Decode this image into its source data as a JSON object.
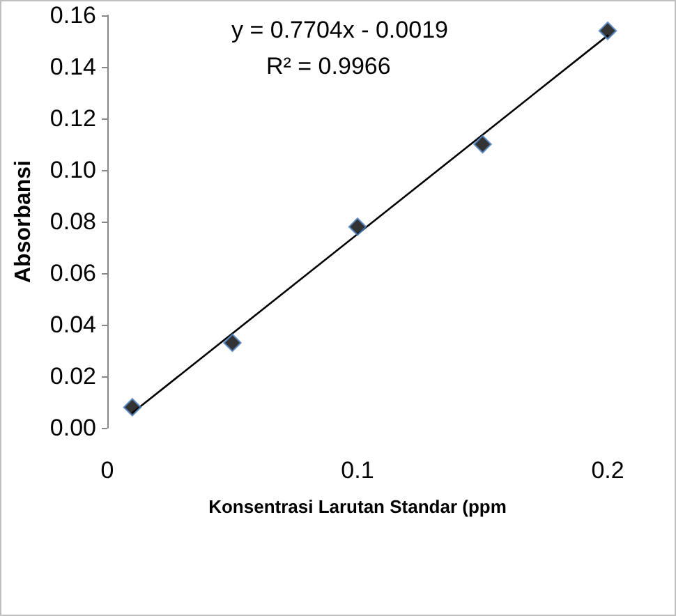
{
  "chart_data": {
    "type": "scatter",
    "xlabel": "Konsentrasi Larutan Standar (ppm",
    "ylabel": "Absorbansi",
    "annotations": [
      "y = 0.7704x - 0.0019",
      "R² = 0.9966"
    ],
    "series": [
      {
        "color": "#000000",
        "x": [
          0.01,
          0.05,
          0.1,
          0.15,
          0.2
        ],
        "values": [
          0.008,
          0.033,
          0.078,
          0.11,
          0.154
        ],
        "marker": "diamond"
      },
      {
        "type": "line",
        "color": "#000000",
        "x": [
          0.01,
          0.2
        ],
        "values": [
          0.0058,
          0.1522
        ],
        "marker": "none",
        "line_style": "solid"
      }
    ],
    "xlim": [
      0,
      0.2
    ],
    "xticks": [
      0,
      0.1,
      0.2
    ],
    "ylim": [
      0,
      0.16
    ],
    "yticks": [
      {
        "value": 0,
        "label": "0.00"
      },
      {
        "value": 0.02,
        "label": "0.02"
      },
      {
        "value": 0.04,
        "label": "0.04"
      },
      {
        "value": 0.06,
        "label": "0.06"
      },
      {
        "value": 0.08,
        "label": "0.08"
      },
      {
        "value": 0.1,
        "label": "0.10"
      },
      {
        "value": 0.12,
        "label": "0.12"
      },
      {
        "value": 0.14,
        "label": "0.14"
      },
      {
        "value": 0.16,
        "label": "0.16"
      }
    ],
    "grid": false
  }
}
